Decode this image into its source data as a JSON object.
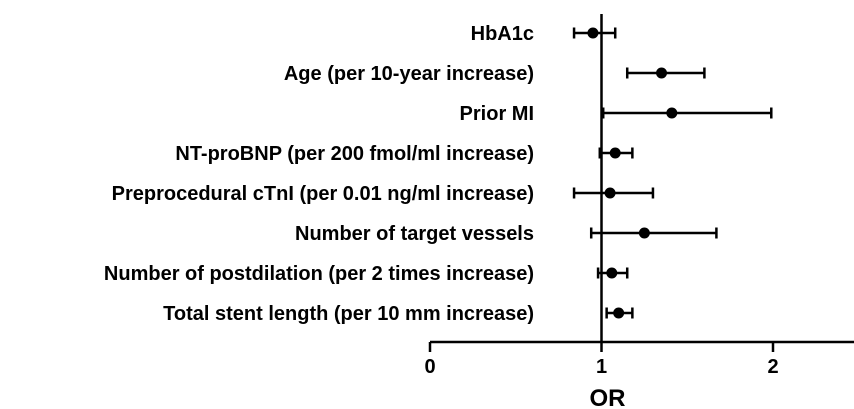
{
  "chart_data": {
    "type": "forest",
    "title": "",
    "xlabel": "OR",
    "ylabel": "",
    "xlim": [
      0,
      2.5
    ],
    "xticks": [
      0,
      1,
      2
    ],
    "xtick_labels": [
      "0",
      "1",
      "2"
    ],
    "reference_line": 1,
    "grid": false,
    "rows": [
      {
        "label": "HbA1c",
        "or": 0.95,
        "lower": 0.84,
        "upper": 1.08
      },
      {
        "label": "Age (per 10-year increase)",
        "or": 1.35,
        "lower": 1.15,
        "upper": 1.6
      },
      {
        "label": "Prior MI",
        "or": 1.41,
        "lower": 1.01,
        "upper": 1.99
      },
      {
        "label": "NT-proBNP (per 200 fmol/ml increase)",
        "or": 1.08,
        "lower": 0.99,
        "upper": 1.18
      },
      {
        "label": "Preprocedural cTnI (per 0.01 ng/ml increase)",
        "or": 1.05,
        "lower": 0.84,
        "upper": 1.3
      },
      {
        "label": "Number of target vessels",
        "or": 1.25,
        "lower": 0.94,
        "upper": 1.67
      },
      {
        "label": "Number of postdilation (per 2 times increase)",
        "or": 1.06,
        "lower": 0.98,
        "upper": 1.15
      },
      {
        "label": "Total stent length (per 10 mm increase)",
        "or": 1.1,
        "lower": 1.03,
        "upper": 1.18
      }
    ]
  }
}
